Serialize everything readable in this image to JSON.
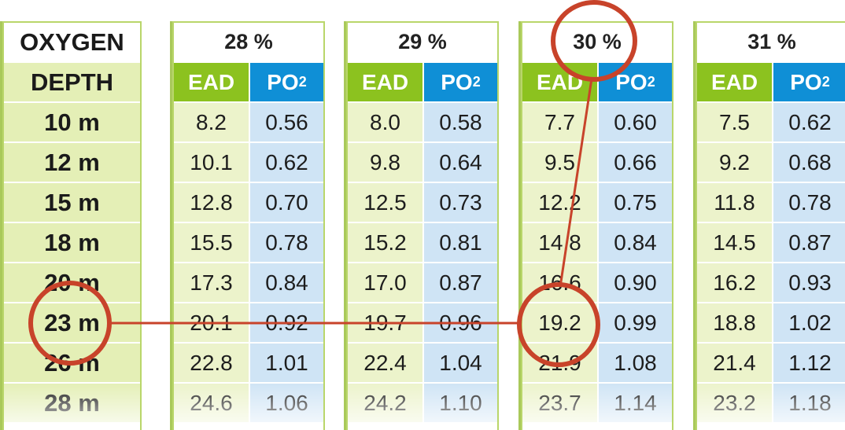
{
  "table": {
    "oxygen_label": "OXYGEN",
    "depth_label": "DEPTH",
    "ead_label": "EAD",
    "po2_label": "PO",
    "po2_sub": "2",
    "depths": [
      "10 m",
      "12 m",
      "15 m",
      "18 m",
      "20 m",
      "23 m",
      "26 m",
      "28 m"
    ],
    "mixes": [
      {
        "oxygen": "28 %",
        "ead": [
          "8.2",
          "10.1",
          "12.8",
          "15.5",
          "17.3",
          "20.1",
          "22.8",
          "24.6"
        ],
        "po2": [
          "0.56",
          "0.62",
          "0.70",
          "0.78",
          "0.84",
          "0.92",
          "1.01",
          "1.06"
        ]
      },
      {
        "oxygen": "29 %",
        "ead": [
          "8.0",
          "9.8",
          "12.5",
          "15.2",
          "17.0",
          "19.7",
          "22.4",
          "24.2"
        ],
        "po2": [
          "0.58",
          "0.64",
          "0.73",
          "0.81",
          "0.87",
          "0.96",
          "1.04",
          "1.10"
        ]
      },
      {
        "oxygen": "30 %",
        "ead": [
          "7.7",
          "9.5",
          "12.2",
          "14.8",
          "16.6",
          "19.2",
          "21.9",
          "23.7"
        ],
        "po2": [
          "0.60",
          "0.66",
          "0.75",
          "0.84",
          "0.90",
          "0.99",
          "1.08",
          "1.14"
        ]
      },
      {
        "oxygen": "31 %",
        "ead": [
          "7.5",
          "9.2",
          "11.8",
          "14.5",
          "16.2",
          "18.8",
          "21.4",
          "23.2"
        ],
        "po2": [
          "0.62",
          "0.68",
          "0.78",
          "0.87",
          "0.93",
          "1.02",
          "1.12",
          "1.18"
        ]
      }
    ]
  },
  "colors": {
    "panel_border": "#b9d66a",
    "ead_header": "#8cc21f",
    "po2_header": "#0f8fd6",
    "ead_cell": "#ecf3cb",
    "po2_cell": "#cfe4f5",
    "depth_cell": "#e4efb6",
    "annotation": "#c8432a"
  },
  "annotation": {
    "highlighted_oxygen": "30 %",
    "highlighted_depth": "23 m",
    "highlighted_ead": "19.2"
  }
}
